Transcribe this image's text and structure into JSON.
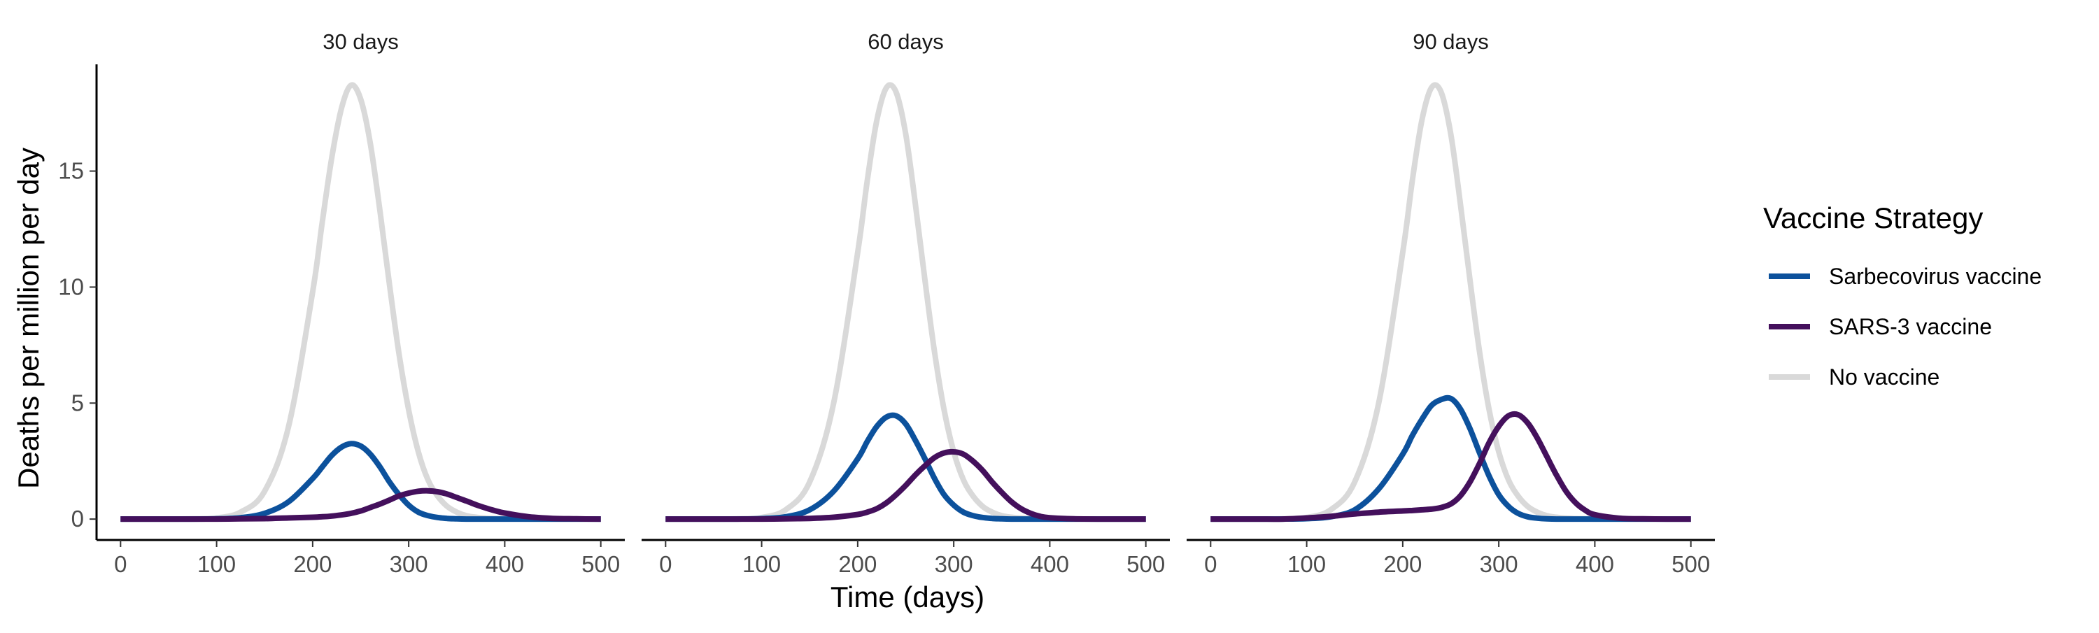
{
  "chart_data": {
    "type": "line",
    "xlabel": "Time (days)",
    "ylabel": "Deaths per million per day",
    "xlim": [
      -25,
      525
    ],
    "ylim": [
      -0.9,
      19.6
    ],
    "x_ticks": [
      0,
      100,
      200,
      300,
      400,
      500
    ],
    "y_ticks": [
      0,
      5,
      10,
      15
    ],
    "grid": false,
    "legend": {
      "title": "Vaccine Strategy",
      "position": "right",
      "entries": [
        "Sarbecovirus vaccine",
        "SARS-3 vaccine",
        "No vaccine"
      ]
    },
    "colors": {
      "Sarbecovirus vaccine": "#0c519c",
      "SARS-3 vaccine": "#44105c",
      "No vaccine": "#d9d9d9"
    },
    "x": [
      0,
      25,
      50,
      75,
      100,
      125,
      150,
      175,
      200,
      210,
      220,
      230,
      240,
      250,
      260,
      270,
      280,
      290,
      300,
      310,
      320,
      330,
      340,
      350,
      360,
      370,
      380,
      390,
      400,
      425,
      450,
      475,
      500
    ],
    "panels": [
      {
        "title": "30 days",
        "series": [
          {
            "name": "No vaccine",
            "values": [
              0,
              0,
              0,
              0.01,
              0.05,
              0.3,
              1.2,
              4.0,
              9.8,
              12.8,
              15.6,
              17.7,
              18.7,
              18.1,
              16.2,
              13.3,
              10.1,
              7.1,
              4.7,
              2.9,
              1.7,
              1.0,
              0.55,
              0.3,
              0.15,
              0.08,
              0.04,
              0.02,
              0.01,
              0,
              0,
              0,
              0
            ]
          },
          {
            "name": "Sarbecovirus vaccine",
            "values": [
              0,
              0,
              0,
              0,
              0.01,
              0.06,
              0.25,
              0.75,
              1.75,
              2.25,
              2.75,
              3.1,
              3.25,
              3.15,
              2.8,
              2.25,
              1.6,
              1.05,
              0.6,
              0.3,
              0.15,
              0.07,
              0.03,
              0.01,
              0,
              0,
              0,
              0,
              0,
              0,
              0,
              0,
              0
            ]
          },
          {
            "name": "SARS-3 vaccine",
            "values": [
              0,
              0,
              0,
              0,
              0,
              0.01,
              0.02,
              0.05,
              0.08,
              0.1,
              0.13,
              0.18,
              0.25,
              0.35,
              0.5,
              0.65,
              0.82,
              1.0,
              1.12,
              1.2,
              1.22,
              1.18,
              1.08,
              0.93,
              0.78,
              0.62,
              0.48,
              0.36,
              0.26,
              0.1,
              0.03,
              0.01,
              0
            ]
          }
        ]
      },
      {
        "title": "60 days",
        "series": [
          {
            "name": "No vaccine",
            "values": [
              0,
              0,
              0,
              0.01,
              0.07,
              0.4,
              1.6,
              5.0,
              11.5,
              14.6,
              17.2,
              18.6,
              18.4,
              16.6,
              13.6,
              10.3,
              7.2,
              4.7,
              2.9,
              1.7,
              1.0,
              0.55,
              0.3,
              0.15,
              0.08,
              0.04,
              0.02,
              0.01,
              0,
              0,
              0,
              0,
              0
            ]
          },
          {
            "name": "Sarbecovirus vaccine",
            "values": [
              0,
              0,
              0,
              0,
              0.02,
              0.1,
              0.4,
              1.2,
              2.6,
              3.35,
              4.0,
              4.4,
              4.45,
              4.1,
              3.4,
              2.6,
              1.75,
              1.05,
              0.6,
              0.3,
              0.15,
              0.07,
              0.03,
              0.01,
              0,
              0,
              0,
              0,
              0,
              0,
              0,
              0,
              0
            ]
          },
          {
            "name": "SARS-3 vaccine",
            "values": [
              0,
              0,
              0,
              0,
              0,
              0.01,
              0.03,
              0.08,
              0.2,
              0.3,
              0.45,
              0.7,
              1.05,
              1.45,
              1.9,
              2.3,
              2.65,
              2.85,
              2.9,
              2.8,
              2.5,
              2.1,
              1.6,
              1.15,
              0.75,
              0.45,
              0.25,
              0.12,
              0.06,
              0.01,
              0,
              0,
              0
            ]
          }
        ]
      },
      {
        "title": "90 days",
        "series": [
          {
            "name": "No vaccine",
            "values": [
              0,
              0,
              0,
              0.01,
              0.07,
              0.4,
              1.6,
              5.0,
              11.5,
              14.6,
              17.2,
              18.6,
              18.4,
              16.6,
              13.6,
              10.3,
              7.2,
              4.7,
              2.9,
              1.7,
              1.0,
              0.55,
              0.3,
              0.15,
              0.08,
              0.04,
              0.02,
              0.01,
              0,
              0,
              0,
              0,
              0
            ]
          },
          {
            "name": "Sarbecovirus vaccine",
            "values": [
              0,
              0,
              0,
              0,
              0.02,
              0.1,
              0.4,
              1.3,
              2.8,
              3.6,
              4.3,
              4.9,
              5.15,
              5.2,
              4.75,
              3.9,
              2.85,
              1.85,
              1.05,
              0.55,
              0.25,
              0.1,
              0.04,
              0.01,
              0,
              0,
              0,
              0,
              0,
              0,
              0,
              0,
              0
            ]
          },
          {
            "name": "SARS-3 vaccine",
            "values": [
              0,
              0,
              0,
              0,
              0.05,
              0.12,
              0.22,
              0.3,
              0.35,
              0.37,
              0.4,
              0.43,
              0.5,
              0.65,
              1.0,
              1.6,
              2.4,
              3.3,
              4.0,
              4.45,
              4.5,
              4.15,
              3.5,
              2.7,
              1.9,
              1.2,
              0.7,
              0.38,
              0.19,
              0.04,
              0.01,
              0,
              0
            ]
          }
        ]
      }
    ]
  }
}
